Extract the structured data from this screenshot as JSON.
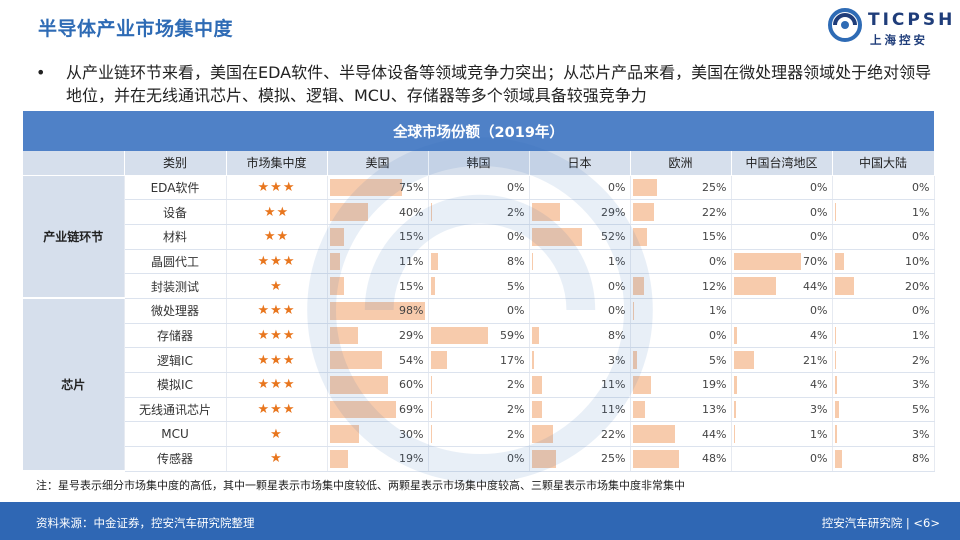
{
  "title": "半导体产业市场集中度",
  "logo": {
    "en": "TICPSH",
    "cn": "上海控安"
  },
  "bullet": "从产业链环节来看，美国在EDA软件、半导体设备等领域竞争力突出；从芯片产品来看，美国在微处理器领域处于绝对领导地位，并在无线通讯芯片、模拟、逻辑、MCU、存储器等多个领域具备较强竞争力",
  "table": {
    "title": "全球市场份额（2019年）",
    "headers": [
      "类别",
      "市场集中度",
      "美国",
      "韩国",
      "日本",
      "欧洲",
      "中国台湾地区",
      "中国大陆"
    ],
    "groups": [
      {
        "label": "产业链环节",
        "rows": [
          {
            "category": "EDA软件",
            "stars": "★★★",
            "values": [
              75,
              0,
              0,
              25,
              0,
              0
            ]
          },
          {
            "category": "设备",
            "stars": "★★",
            "values": [
              40,
              2,
              29,
              22,
              0,
              1
            ]
          },
          {
            "category": "材料",
            "stars": "★★",
            "values": [
              15,
              0,
              52,
              15,
              0,
              0
            ]
          },
          {
            "category": "晶圆代工",
            "stars": "★★★",
            "values": [
              11,
              8,
              1,
              0,
              70,
              10
            ]
          },
          {
            "category": "封装测试",
            "stars": "★",
            "values": [
              15,
              5,
              0,
              12,
              44,
              20
            ]
          }
        ]
      },
      {
        "label": "芯片",
        "rows": [
          {
            "category": "微处理器",
            "stars": "★★★",
            "values": [
              98,
              0,
              0,
              1,
              0,
              0
            ]
          },
          {
            "category": "存储器",
            "stars": "★★★",
            "values": [
              29,
              59,
              8,
              0,
              4,
              1
            ]
          },
          {
            "category": "逻辑IC",
            "stars": "★★★",
            "values": [
              54,
              17,
              3,
              5,
              21,
              2
            ]
          },
          {
            "category": "模拟IC",
            "stars": "★★★",
            "values": [
              60,
              2,
              11,
              19,
              4,
              3
            ]
          },
          {
            "category": "无线通讯芯片",
            "stars": "★★★",
            "values": [
              69,
              2,
              11,
              13,
              3,
              5
            ]
          },
          {
            "category": "MCU",
            "stars": "★",
            "values": [
              30,
              2,
              22,
              44,
              1,
              3
            ]
          },
          {
            "category": "传感器",
            "stars": "★",
            "values": [
              19,
              0,
              25,
              48,
              0,
              8
            ]
          }
        ]
      }
    ]
  },
  "note": "注：星号表示细分市场集中度的高低，其中一颗星表示市场集中度较低、两颗星表示市场集中度较高、三颗星表示市场集中度非常集中",
  "footer": {
    "source": "资料来源：中金证券，控安汽车研究院整理",
    "right": "控安汽车研究院 | <6>"
  },
  "colors": {
    "title": "#2E6BB5",
    "table_header": "#4F81C7",
    "header_row": "#D6DFEC",
    "bar": "#F7CBAC",
    "stars": "#E8761E",
    "footer": "#2F67B4"
  }
}
